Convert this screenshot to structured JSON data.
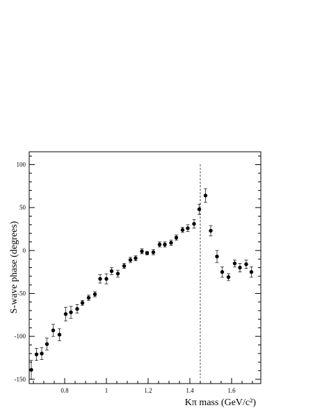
{
  "chart_data": {
    "type": "scatter",
    "title": "",
    "xlabel": "Kπ mass  (GeV/c²)",
    "ylabel": "S-wave phase  (degrees)",
    "xlim": [
      0.63,
      1.74
    ],
    "ylim": [
      -155,
      115
    ],
    "x_ticks": [
      {
        "value": 0.8,
        "label": "0.8"
      },
      {
        "value": 1.0,
        "label": "1"
      },
      {
        "value": 1.2,
        "label": "1.2"
      },
      {
        "value": 1.4,
        "label": "1.4"
      },
      {
        "value": 1.6,
        "label": "1.6"
      }
    ],
    "y_ticks": [
      {
        "value": -150,
        "label": "-150"
      },
      {
        "value": -100,
        "label": "-100"
      },
      {
        "value": -50,
        "label": "-50"
      },
      {
        "value": 0,
        "label": "0"
      },
      {
        "value": 50,
        "label": "50"
      },
      {
        "value": 100,
        "label": "100"
      }
    ],
    "vertical_line": {
      "x": 1.45,
      "style": "dashed"
    },
    "grid": false,
    "series": [
      {
        "marker": "filled-circle",
        "color": "#000000",
        "points": [
          {
            "x": 0.64,
            "y": -139,
            "err": 11
          },
          {
            "x": 0.665,
            "y": -121,
            "err": 7
          },
          {
            "x": 0.69,
            "y": -120,
            "err": 7
          },
          {
            "x": 0.715,
            "y": -109,
            "err": 7
          },
          {
            "x": 0.745,
            "y": -93,
            "err": 7
          },
          {
            "x": 0.775,
            "y": -98,
            "err": 7
          },
          {
            "x": 0.805,
            "y": -74,
            "err": 8
          },
          {
            "x": 0.83,
            "y": -72,
            "err": 7
          },
          {
            "x": 0.86,
            "y": -68,
            "err": 5
          },
          {
            "x": 0.885,
            "y": -61,
            "err": 3
          },
          {
            "x": 0.915,
            "y": -55,
            "err": 3
          },
          {
            "x": 0.945,
            "y": -51,
            "err": 3
          },
          {
            "x": 0.97,
            "y": -33,
            "err": 5
          },
          {
            "x": 1.0,
            "y": -33,
            "err": 6
          },
          {
            "x": 1.025,
            "y": -24,
            "err": 4
          },
          {
            "x": 1.055,
            "y": -27,
            "err": 4
          },
          {
            "x": 1.085,
            "y": -18,
            "err": 3
          },
          {
            "x": 1.115,
            "y": -11,
            "err": 3
          },
          {
            "x": 1.14,
            "y": -9,
            "err": 3
          },
          {
            "x": 1.17,
            "y": -1,
            "err": 3
          },
          {
            "x": 1.195,
            "y": -3,
            "err": 2
          },
          {
            "x": 1.225,
            "y": -2,
            "err": 3
          },
          {
            "x": 1.255,
            "y": 7,
            "err": 3
          },
          {
            "x": 1.28,
            "y": 7,
            "err": 3
          },
          {
            "x": 1.31,
            "y": 9,
            "err": 3
          },
          {
            "x": 1.335,
            "y": 15,
            "err": 3
          },
          {
            "x": 1.365,
            "y": 24,
            "err": 3
          },
          {
            "x": 1.39,
            "y": 26,
            "err": 4
          },
          {
            "x": 1.42,
            "y": 31,
            "err": 5
          },
          {
            "x": 1.445,
            "y": 48,
            "err": 6
          },
          {
            "x": 1.475,
            "y": 64,
            "err": 8
          },
          {
            "x": 1.5,
            "y": 23,
            "err": 6
          },
          {
            "x": 1.53,
            "y": -7,
            "err": 7
          },
          {
            "x": 1.555,
            "y": -25,
            "err": 6
          },
          {
            "x": 1.585,
            "y": -31,
            "err": 4
          },
          {
            "x": 1.615,
            "y": -15,
            "err": 4
          },
          {
            "x": 1.64,
            "y": -20,
            "err": 5
          },
          {
            "x": 1.67,
            "y": -16,
            "err": 5
          },
          {
            "x": 1.695,
            "y": -25,
            "err": 6
          }
        ]
      }
    ]
  }
}
